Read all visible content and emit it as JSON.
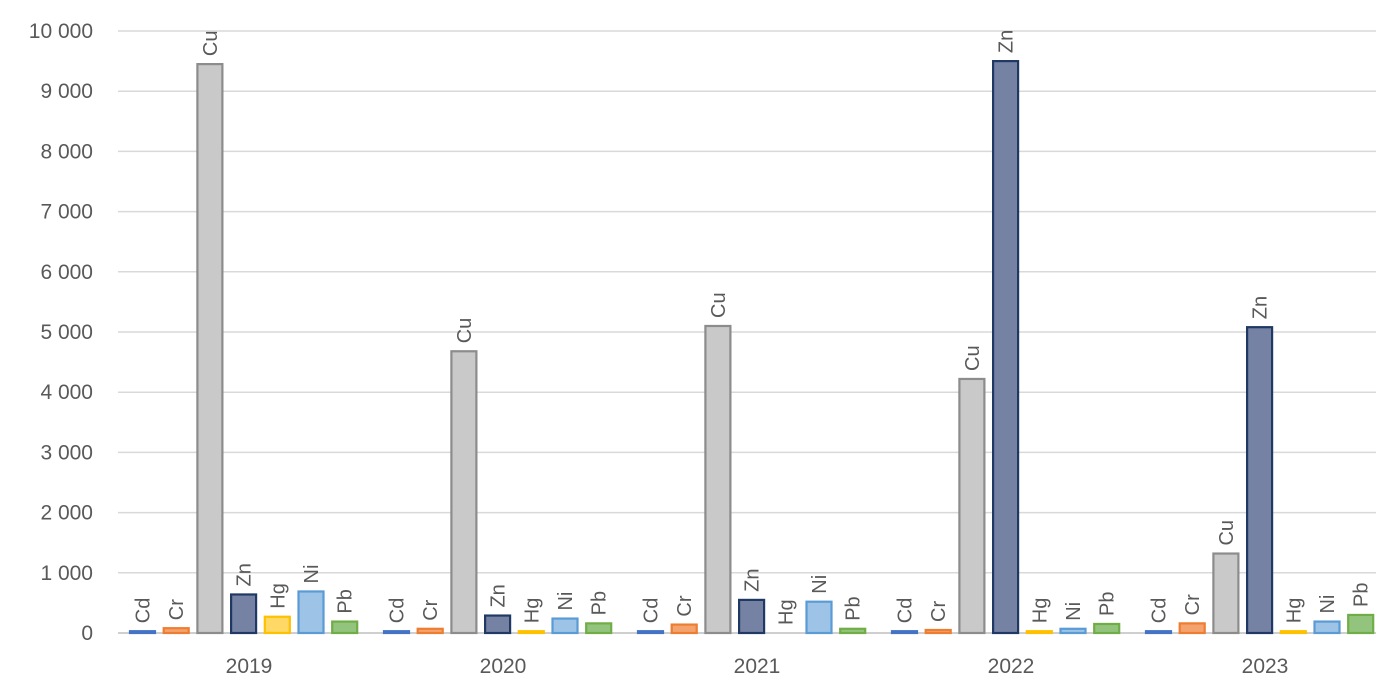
{
  "chart_data": {
    "type": "bar",
    "title": "",
    "xlabel": "",
    "ylabel": "",
    "ylim": [
      0,
      10000
    ],
    "yticks": [
      0,
      1000,
      2000,
      3000,
      4000,
      5000,
      6000,
      7000,
      8000,
      9000,
      10000
    ],
    "ytick_labels": [
      "0",
      "1 000",
      "2 000",
      "3 000",
      "4 000",
      "5 000",
      "6 000",
      "7 000",
      "8 000",
      "9 000",
      "10 000"
    ],
    "grid": true,
    "legend": "none",
    "categories": [
      "2019",
      "2020",
      "2021",
      "2022",
      "2023"
    ],
    "series": [
      {
        "name": "Cd",
        "fill": "#8fb0e0",
        "stroke": "#4472c4",
        "values": [
          30,
          30,
          30,
          30,
          30
        ]
      },
      {
        "name": "Cr",
        "fill": "#f4a26e",
        "stroke": "#ed7d31",
        "values": [
          80,
          70,
          140,
          50,
          160
        ]
      },
      {
        "name": "Cu",
        "fill": "#c9c9c9",
        "stroke": "#8c8c8c",
        "values": [
          9450,
          4680,
          5100,
          4220,
          1320
        ]
      },
      {
        "name": "Zn",
        "fill": "#7682a3",
        "stroke": "#1f3864",
        "values": [
          640,
          290,
          550,
          9500,
          5080
        ]
      },
      {
        "name": "Hg",
        "fill": "#ffd866",
        "stroke": "#ffc000",
        "values": [
          270,
          30,
          0,
          30,
          30
        ]
      },
      {
        "name": "Ni",
        "fill": "#9dc3e6",
        "stroke": "#5b9bd5",
        "values": [
          690,
          240,
          520,
          70,
          190
        ]
      },
      {
        "name": "Pb",
        "fill": "#93c47d",
        "stroke": "#70ad47",
        "values": [
          190,
          160,
          70,
          150,
          300
        ]
      }
    ]
  }
}
